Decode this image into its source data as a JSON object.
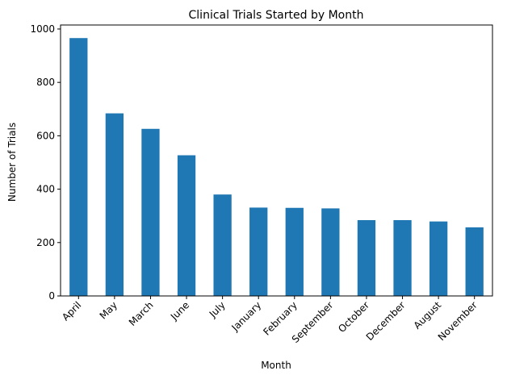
{
  "chart_data": {
    "type": "bar",
    "title": "Clinical Trials Started by Month",
    "xlabel": "Month",
    "ylabel": "Number of Trials",
    "categories": [
      "April",
      "May",
      "March",
      "June",
      "July",
      "January",
      "February",
      "September",
      "October",
      "December",
      "August",
      "November"
    ],
    "values": [
      966,
      684,
      626,
      527,
      380,
      331,
      330,
      328,
      284,
      284,
      279,
      257
    ],
    "ylim": [
      0,
      1015
    ],
    "yticks": [
      0,
      200,
      400,
      600,
      800,
      1000
    ],
    "grid": false,
    "legend": "none",
    "bar_color": "#1f77b4"
  }
}
